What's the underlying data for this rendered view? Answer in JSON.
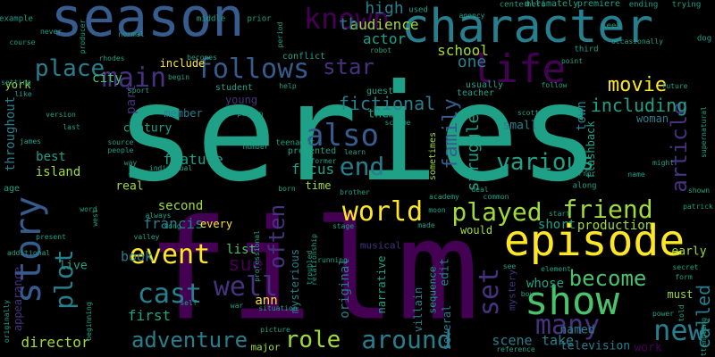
{
  "palette": {
    "background": "#000000",
    "dark_purple": "#440154",
    "indigo": "#46327e",
    "blue": "#365c8d",
    "teal": "#277f8e",
    "green_teal": "#1fa187",
    "green": "#4ac16d",
    "lime": "#a0da39",
    "yellow": "#fde725"
  },
  "words": [
    {
      "text": "series"
    },
    {
      "text": "film"
    },
    {
      "text": "season"
    },
    {
      "text": "character"
    },
    {
      "text": "episode"
    },
    {
      "text": "life"
    },
    {
      "text": "show"
    },
    {
      "text": "story"
    },
    {
      "text": "known"
    },
    {
      "text": "follows"
    },
    {
      "text": "main"
    },
    {
      "text": "place"
    },
    {
      "text": "also"
    },
    {
      "text": "world"
    },
    {
      "text": "played"
    },
    {
      "text": "friend"
    },
    {
      "text": "new"
    },
    {
      "text": "many"
    },
    {
      "text": "set"
    },
    {
      "text": "end"
    },
    {
      "text": "various"
    },
    {
      "text": "article"
    },
    {
      "text": "plot"
    },
    {
      "text": "event"
    },
    {
      "text": "cast"
    },
    {
      "text": "adventure"
    },
    {
      "text": "role"
    },
    {
      "text": "around"
    },
    {
      "text": "become"
    },
    {
      "text": "often"
    },
    {
      "text": "well"
    },
    {
      "text": "sue"
    },
    {
      "text": "movie"
    },
    {
      "text": "star"
    },
    {
      "text": "family"
    },
    {
      "text": "including"
    },
    {
      "text": "fictional"
    },
    {
      "text": "one"
    },
    {
      "text": "high"
    },
    {
      "text": "audience"
    },
    {
      "text": "actor"
    },
    {
      "text": "school"
    },
    {
      "text": "city"
    },
    {
      "text": "include"
    },
    {
      "text": "director"
    },
    {
      "text": "first"
    },
    {
      "text": "feature"
    },
    {
      "text": "francis"
    },
    {
      "text": "second"
    },
    {
      "text": "book"
    },
    {
      "text": "list"
    },
    {
      "text": "ann"
    },
    {
      "text": "live"
    },
    {
      "text": "scene"
    },
    {
      "text": "take"
    },
    {
      "text": "called"
    },
    {
      "text": "production"
    },
    {
      "text": "short"
    },
    {
      "text": "town"
    },
    {
      "text": "struggle"
    },
    {
      "text": "focus"
    },
    {
      "text": "time"
    },
    {
      "text": "island"
    },
    {
      "text": "best"
    },
    {
      "text": "century"
    },
    {
      "text": "member"
    },
    {
      "text": "real"
    },
    {
      "text": "part"
    },
    {
      "text": "throughout"
    },
    {
      "text": "york"
    },
    {
      "text": "young"
    },
    {
      "text": "theme"
    },
    {
      "text": "small"
    },
    {
      "text": "whose"
    },
    {
      "text": "named"
    },
    {
      "text": "television"
    },
    {
      "text": "work"
    },
    {
      "text": "must"
    },
    {
      "text": "early"
    },
    {
      "text": "woman"
    },
    {
      "text": "flashback"
    },
    {
      "text": "edit"
    },
    {
      "text": "original"
    },
    {
      "text": "mysterious"
    },
    {
      "text": "narrative"
    },
    {
      "text": "several"
    },
    {
      "text": "villain"
    },
    {
      "text": "sequence"
    },
    {
      "text": "mystery"
    },
    {
      "text": "musical"
    },
    {
      "text": "would"
    },
    {
      "text": "every"
    },
    {
      "text": "appearance"
    },
    {
      "text": "major"
    },
    {
      "text": "th"
    },
    {
      "text": "conflict"
    },
    {
      "text": "sometimes"
    },
    {
      "text": "presented"
    },
    {
      "text": "teenager"
    },
    {
      "text": "student"
    },
    {
      "text": "guest"
    },
    {
      "text": "teacher"
    },
    {
      "text": "usually"
    },
    {
      "text": "ultimately"
    },
    {
      "text": "premiere"
    },
    {
      "text": "center"
    },
    {
      "text": "hero"
    },
    {
      "text": "ending"
    },
    {
      "text": "trying"
    },
    {
      "text": "example"
    },
    {
      "text": "middle"
    },
    {
      "text": "prior"
    },
    {
      "text": "used"
    },
    {
      "text": "seek"
    },
    {
      "text": "dog"
    },
    {
      "text": "producer"
    },
    {
      "text": "becomes"
    },
    {
      "text": "period"
    },
    {
      "text": "agency"
    },
    {
      "text": "third"
    },
    {
      "text": "occasionally"
    },
    {
      "text": "course"
    },
    {
      "text": "normal"
    },
    {
      "text": "rhodes"
    },
    {
      "text": "begin"
    },
    {
      "text": "robot"
    },
    {
      "text": "point"
    },
    {
      "text": "setting"
    },
    {
      "text": "sport"
    },
    {
      "text": "help"
    },
    {
      "text": "person"
    },
    {
      "text": "scheme"
    },
    {
      "text": "follow"
    },
    {
      "text": "future"
    },
    {
      "text": "version"
    },
    {
      "text": "former"
    },
    {
      "text": "supernatural"
    },
    {
      "text": "source"
    },
    {
      "text": "individual"
    },
    {
      "text": "number"
    },
    {
      "text": "learn"
    },
    {
      "text": "scott"
    },
    {
      "text": "might"
    },
    {
      "text": "horror"
    },
    {
      "text": "along"
    },
    {
      "text": "shown"
    },
    {
      "text": "patrick"
    },
    {
      "text": "secret"
    },
    {
      "text": "form"
    },
    {
      "text": "power"
    },
    {
      "text": "told"
    },
    {
      "text": "attempting"
    },
    {
      "text": "reference"
    },
    {
      "text": "element"
    },
    {
      "text": "see"
    },
    {
      "text": "boy"
    },
    {
      "text": "brother"
    },
    {
      "text": "academy"
    },
    {
      "text": "deal"
    },
    {
      "text": "common"
    },
    {
      "text": "moon"
    },
    {
      "text": "made"
    },
    {
      "text": "stage"
    },
    {
      "text": "start"
    },
    {
      "text": "picture"
    },
    {
      "text": "running"
    },
    {
      "text": "situation"
    },
    {
      "text": "war"
    },
    {
      "text": "self"
    },
    {
      "text": "song"
    },
    {
      "text": "valley"
    },
    {
      "text": "always"
    },
    {
      "text": "west"
    },
    {
      "text": "word"
    },
    {
      "text": "present"
    },
    {
      "text": "additional"
    },
    {
      "text": "originally"
    },
    {
      "text": "beginning"
    },
    {
      "text": "age"
    },
    {
      "text": "james"
    },
    {
      "text": "people"
    },
    {
      "text": "tv"
    },
    {
      "text": "way"
    },
    {
      "text": "said"
    },
    {
      "text": "professional"
    },
    {
      "text": "born"
    },
    {
      "text": "relationship"
    },
    {
      "text": "troubled"
    },
    {
      "text": "like"
    },
    {
      "text": "never"
    },
    {
      "text": "last"
    },
    {
      "text": "name"
    }
  ]
}
